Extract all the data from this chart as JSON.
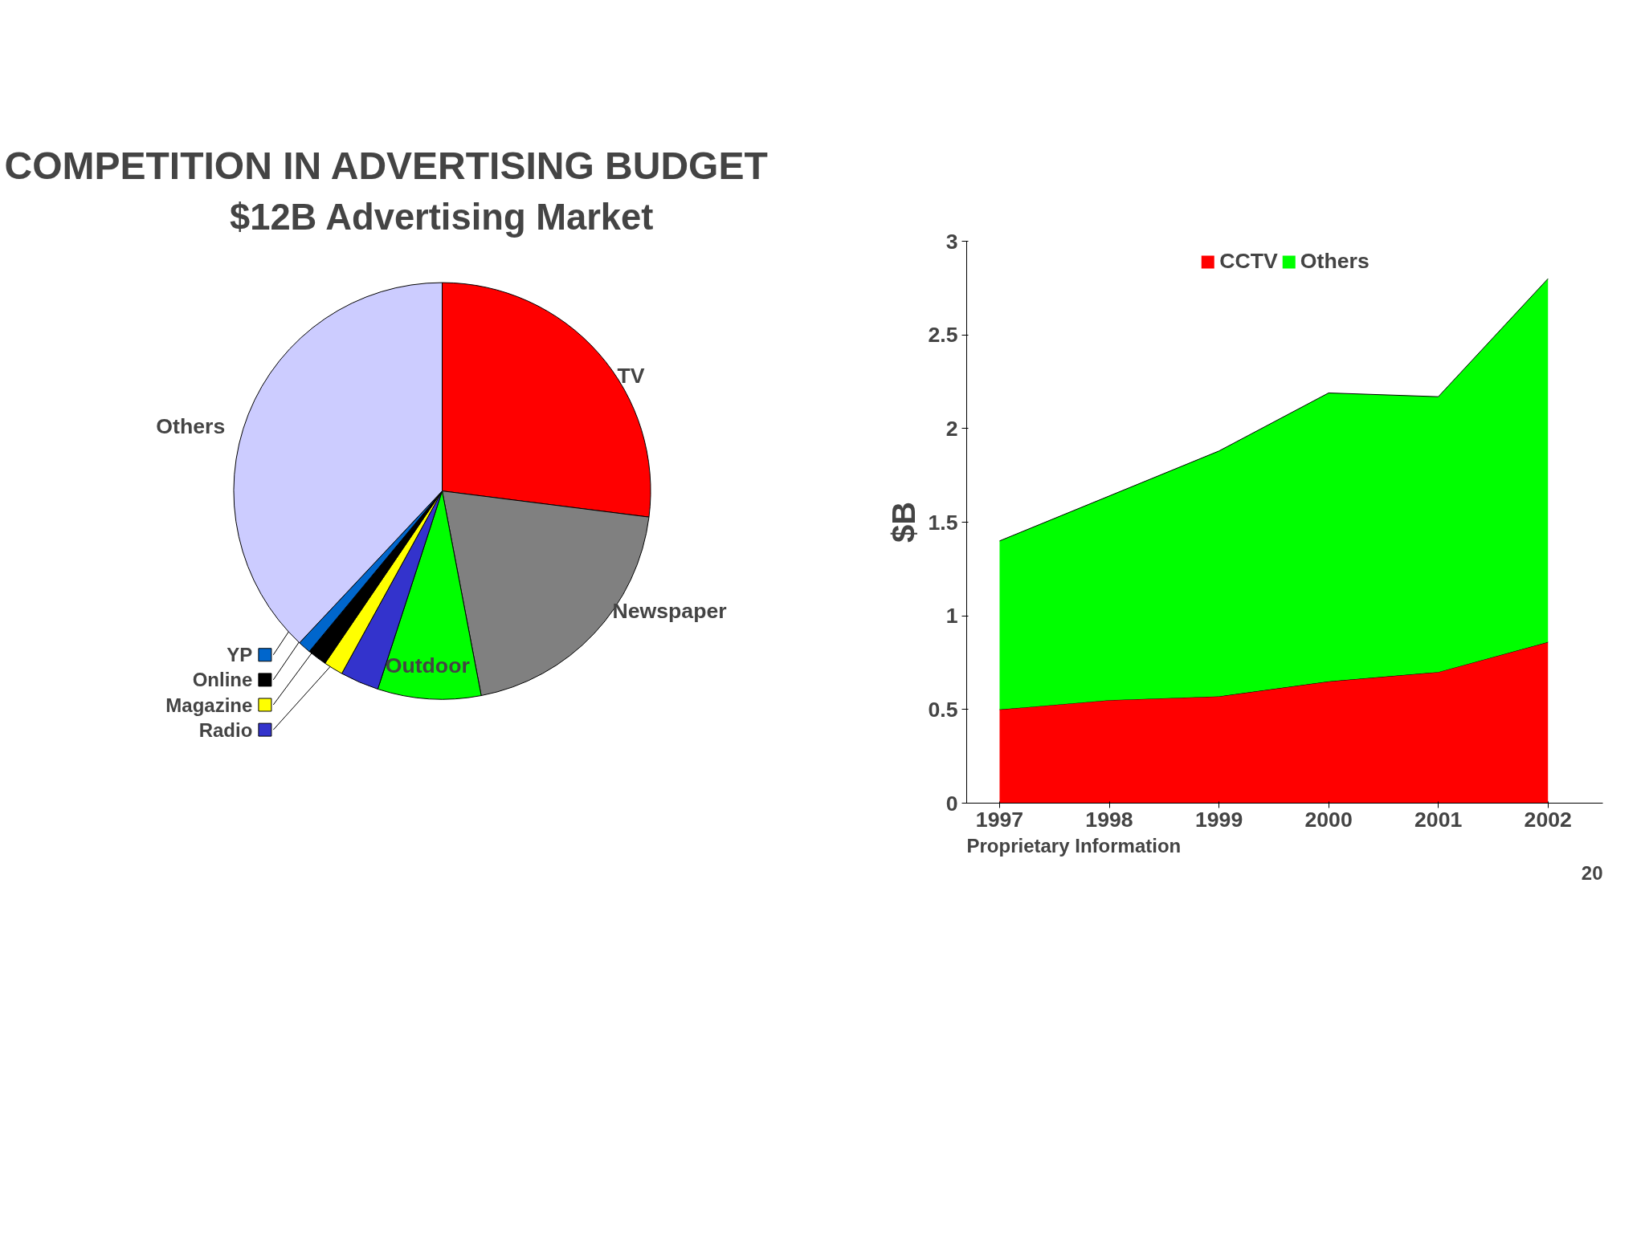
{
  "chart_data": [
    {
      "type": "pie",
      "title": "COMPETITION IN ADVERTISING BUDGET",
      "subtitle": "$12B Advertising Market",
      "categories": [
        "TV",
        "Newspaper",
        "Outdoor",
        "Radio",
        "Magazine",
        "Online",
        "YP",
        "Others"
      ],
      "values": [
        27,
        20,
        8,
        3,
        1.5,
        1.5,
        1,
        38
      ],
      "colors": [
        "#ff0000",
        "#808080",
        "#00ff00",
        "#3333cc",
        "#ffff00",
        "#000000",
        "#0066cc",
        "#ccccff"
      ],
      "legend": "bottom left"
    },
    {
      "type": "area",
      "stacked": true,
      "categories": [
        "1997",
        "1998",
        "1999",
        "2000",
        "2001",
        "2002"
      ],
      "series": [
        {
          "name": "CCTV",
          "color": "#ff0000",
          "values": [
            0.5,
            0.55,
            0.57,
            0.65,
            0.7,
            0.86
          ]
        },
        {
          "name": "Others",
          "color": "#00ff00",
          "values": [
            0.9,
            1.09,
            1.31,
            1.54,
            1.47,
            1.94
          ]
        }
      ],
      "ylabel": "$B",
      "ylim": [
        0,
        3
      ],
      "yticks": [
        0,
        0.5,
        1,
        1.5,
        2,
        2.5,
        3
      ],
      "legend": "top",
      "annotations": [
        "Proprietary Information",
        "20"
      ]
    }
  ]
}
